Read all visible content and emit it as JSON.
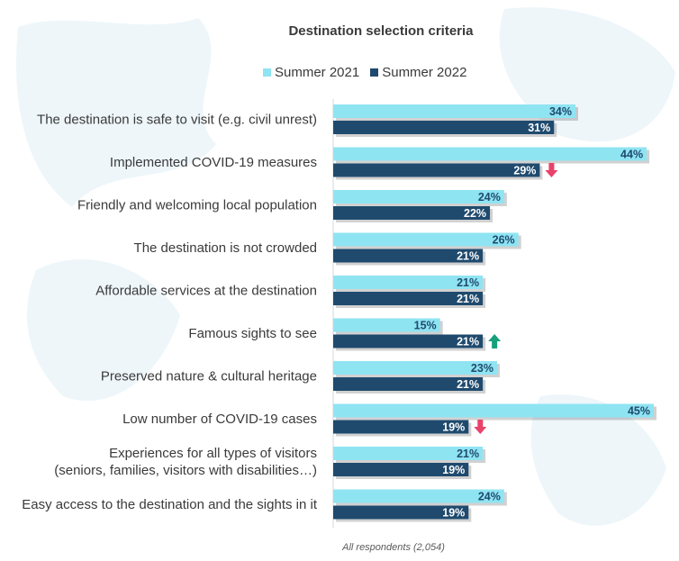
{
  "chart_data": {
    "type": "bar",
    "orientation": "horizontal",
    "title": "Destination selection criteria",
    "categories": [
      [
        "The destination is safe to visit (e.g. civil unrest)"
      ],
      [
        "Implemented COVID-19 measures"
      ],
      [
        "Friendly and welcoming local population"
      ],
      [
        "The destination is not crowded"
      ],
      [
        "Affordable services at the destination"
      ],
      [
        "Famous sights to see"
      ],
      [
        "Preserved nature & cultural heritage"
      ],
      [
        "Low number of COVID-19 cases"
      ],
      [
        "Experiences for all types of visitors",
        "(seniors, families, visitors with disabilities…)"
      ],
      [
        "Easy access to the destination and the sights in it"
      ]
    ],
    "series": [
      {
        "name": "Summer 2021",
        "color": "#8fe4f2",
        "values": [
          34,
          44,
          24,
          26,
          21,
          15,
          23,
          45,
          21,
          24
        ]
      },
      {
        "name": "Summer 2022",
        "color": "#1f4a6e",
        "values": [
          31,
          29,
          22,
          21,
          21,
          21,
          21,
          19,
          19,
          19
        ]
      }
    ],
    "value_suffix": "%",
    "xlim": [
      0,
      45
    ],
    "legend_position": "top",
    "change_arrows": [
      {
        "category_index": 1,
        "direction": "down",
        "color": "#e8436a"
      },
      {
        "category_index": 5,
        "direction": "up",
        "color": "#17a07b"
      },
      {
        "category_index": 7,
        "direction": "down",
        "color": "#e8436a"
      }
    ],
    "note": "All respondents (2,054)"
  }
}
